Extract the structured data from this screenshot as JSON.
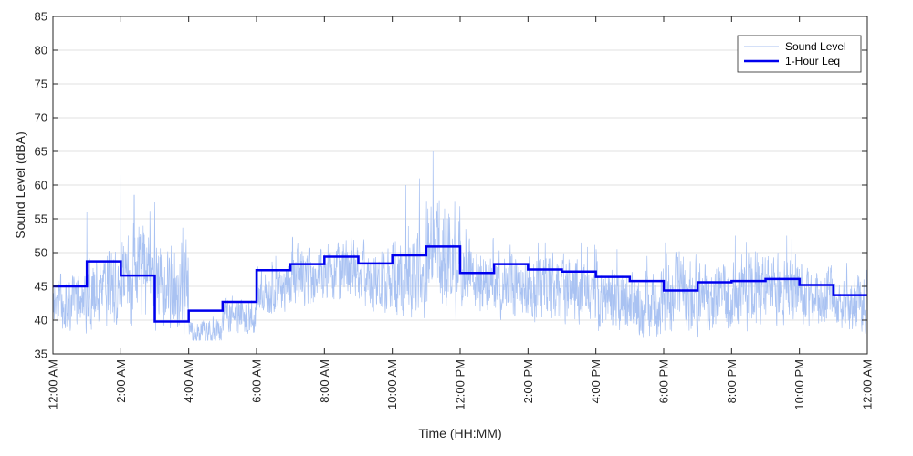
{
  "chart_data": {
    "type": "line",
    "title": "",
    "xlabel": "Time (HH:MM)",
    "ylabel": "Sound Level (dBA)",
    "ylim": [
      35,
      85
    ],
    "yticks": [
      35,
      40,
      45,
      50,
      55,
      60,
      65,
      70,
      75,
      80,
      85
    ],
    "xlim_hours": [
      0,
      24
    ],
    "xtick_hours": [
      0,
      2,
      4,
      6,
      8,
      10,
      12,
      14,
      16,
      18,
      20,
      22,
      24
    ],
    "xtick_labels": [
      "12:00 AM",
      "2:00 AM",
      "4:00 AM",
      "6:00 AM",
      "8:00 AM",
      "10:00 AM",
      "12:00 PM",
      "2:00 PM",
      "4:00 PM",
      "6:00 PM",
      "8:00 PM",
      "10:00 PM",
      "12:00 AM"
    ],
    "grid": "horizontal",
    "legend_position": "top-right",
    "series": [
      {
        "name": "Sound Level",
        "color": "#a9c2f2",
        "hourly_range_min": [
          38,
          38,
          38,
          37,
          37,
          38,
          41,
          42,
          43,
          41,
          39,
          39,
          41,
          40,
          39,
          39,
          38,
          37,
          37,
          37,
          38,
          39,
          39,
          38
        ],
        "hourly_range_max": [
          51,
          56,
          61,
          57,
          43,
          47,
          52,
          55,
          56,
          55,
          57,
          65,
          56,
          55,
          54,
          54,
          53,
          52,
          54,
          54,
          55,
          55,
          52,
          51
        ],
        "peaks": [
          {
            "hour": 2.0,
            "value": 61.5
          },
          {
            "hour": 3.0,
            "value": 57.5
          },
          {
            "hour": 1.0,
            "value": 56
          },
          {
            "hour": 10.4,
            "value": 60
          },
          {
            "hour": 10.8,
            "value": 61
          },
          {
            "hour": 11.2,
            "value": 65
          }
        ]
      },
      {
        "name": "1-Hour Leq",
        "color": "#0000ee",
        "step_hours": [
          0,
          1,
          2,
          3,
          4,
          5,
          6,
          7,
          8,
          9,
          10,
          11,
          12,
          13,
          14,
          15,
          16,
          17,
          18,
          19,
          20,
          21,
          22,
          23
        ],
        "values": [
          45,
          48.7,
          46.6,
          39.8,
          41.4,
          42.7,
          47.4,
          48.3,
          49.4,
          48.4,
          49.6,
          50.9,
          47,
          48.3,
          47.5,
          47.2,
          46.4,
          45.8,
          44.4,
          45.6,
          45.8,
          46.1,
          45.2,
          43.7
        ]
      }
    ]
  }
}
